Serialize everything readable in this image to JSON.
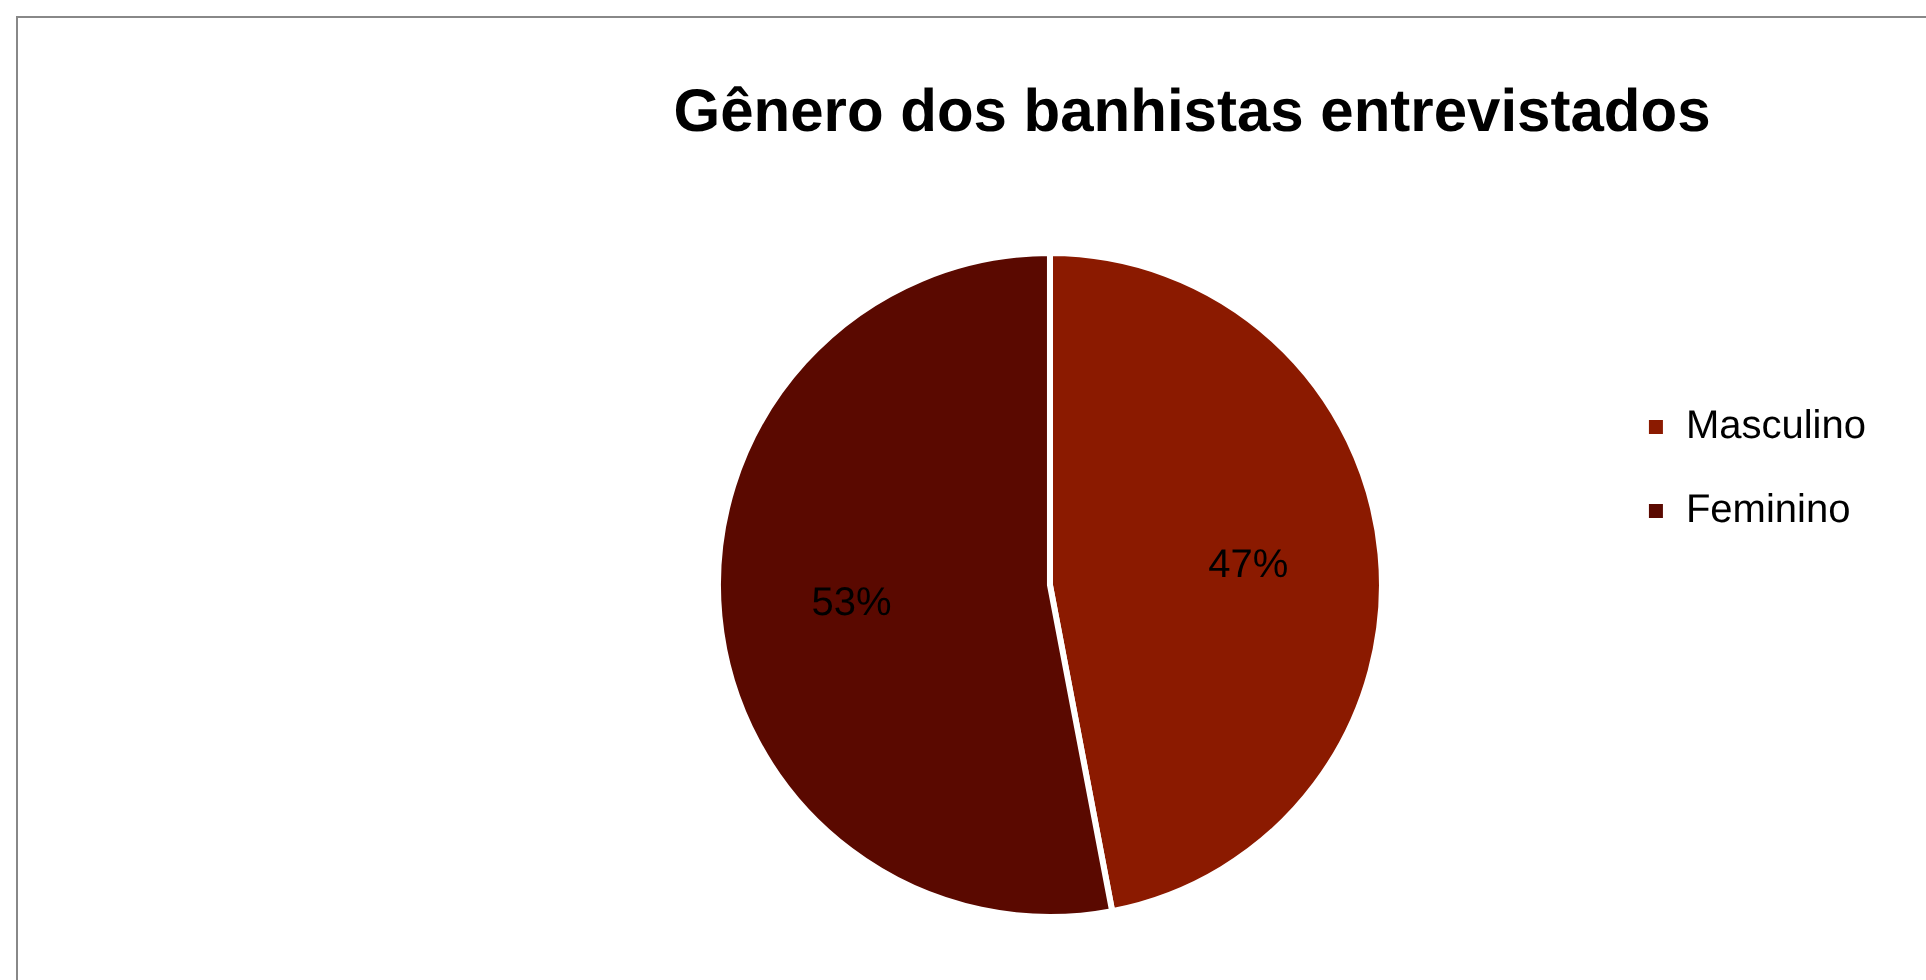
{
  "chart_data": {
    "type": "pie",
    "title": "Gênero dos banhistas entrevistados",
    "categories": [
      "Masculino",
      "Feminino"
    ],
    "values": [
      47,
      53
    ],
    "colors": [
      "#8b1a00",
      "#5a0900"
    ],
    "value_labels": [
      "47%",
      "53%"
    ],
    "legend": "right"
  }
}
